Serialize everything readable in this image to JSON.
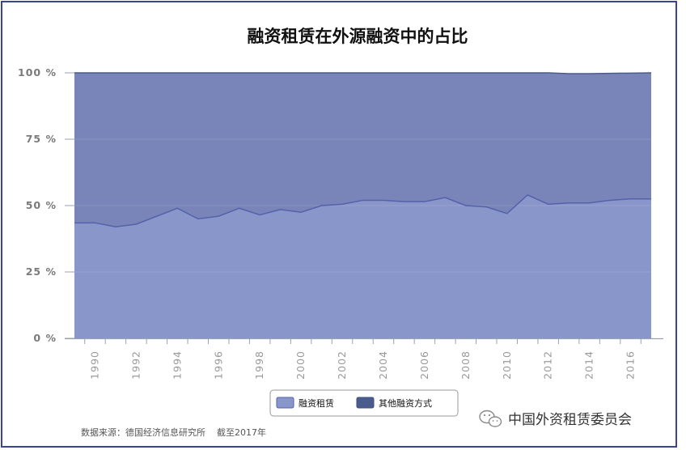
{
  "colors": {
    "lower": "#8896c9",
    "upper": "#7985b8",
    "lower_line": "#5461ab",
    "upper_line": "#4a5b8e",
    "axis": "#9aa0b0",
    "frame": "#3b4399"
  },
  "chart_data": {
    "type": "area",
    "title": "融资租赁在外源融资中的占比",
    "xlabel": "",
    "ylabel": "",
    "stacked": true,
    "percent": true,
    "ylim": [
      0,
      100
    ],
    "yticks": [
      "0 %",
      "25 %",
      "50 %",
      "75 %",
      "100 %"
    ],
    "yticks_values": [
      0,
      25,
      50,
      75,
      100
    ],
    "xlim": [
      1989,
      2017
    ],
    "xticks": [
      "1990",
      "1992",
      "1994",
      "1996",
      "1998",
      "2000",
      "2002",
      "2004",
      "2006",
      "2008",
      "2010",
      "2012",
      "2014",
      "2016"
    ],
    "xticks_values": [
      1990,
      1992,
      1994,
      1996,
      1998,
      2000,
      2002,
      2004,
      2006,
      2008,
      2010,
      2012,
      2014,
      2016
    ],
    "x": [
      1989,
      1990,
      1991,
      1992,
      1993,
      1994,
      1995,
      1996,
      1997,
      1998,
      1999,
      2000,
      2001,
      2002,
      2003,
      2004,
      2005,
      2006,
      2007,
      2008,
      2009,
      2010,
      2011,
      2012,
      2013,
      2014,
      2015,
      2016,
      2017
    ],
    "series": [
      {
        "name": "融资租赁",
        "values": [
          43.5,
          43.5,
          42,
          43,
          46,
          49,
          45,
          46,
          49,
          46.5,
          48.5,
          47.5,
          50,
          50.5,
          52,
          52,
          51.5,
          51.5,
          53,
          50,
          49.5,
          47,
          54,
          50.5,
          51,
          51,
          52,
          52.5,
          52.5
        ]
      },
      {
        "name": "其他融资方式",
        "values": [
          56.5,
          56.5,
          58,
          57,
          54,
          51,
          55,
          54,
          51,
          53.5,
          51.5,
          52.5,
          50,
          49.5,
          48,
          48,
          48.5,
          48.5,
          47,
          50,
          50.5,
          53,
          46,
          49.5,
          48.7,
          48.7,
          47.8,
          47.4,
          47.5
        ]
      }
    ],
    "legend_position": "bottom-center",
    "grid": true
  },
  "source_note": "数据来源：德国经济信息研究所    截至2017年",
  "watermark": "中国外资租赁委员会"
}
